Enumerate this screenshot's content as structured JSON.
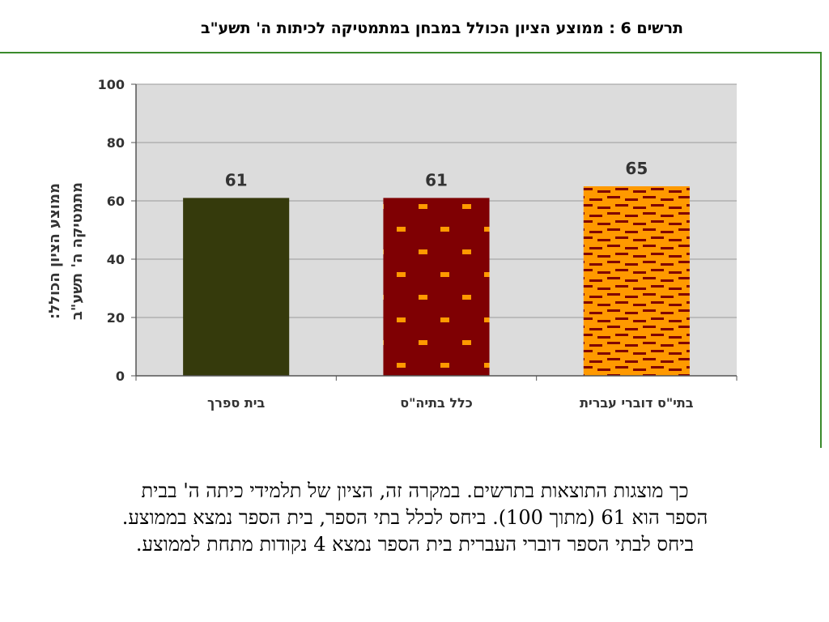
{
  "chart_data": {
    "type": "bar",
    "title": "תרשים 6 : ממוצע הציון הכולל במבחן במתמטיקה לכיתות ה' תשע\"ב",
    "ylabel_lines": [
      "ממוצע הציון הכולל:",
      "מתמטיקה ה' תשע\"ב"
    ],
    "xlabel": "",
    "categories": [
      "בית ספרך",
      "כלל בתיה\"ס",
      "בתי\"ס דוברי עברית"
    ],
    "values": [
      61,
      61,
      65
    ],
    "ylim": [
      0,
      100
    ],
    "yticks": [
      0,
      20,
      40,
      60,
      80,
      100
    ],
    "grid": true,
    "bar_colors": [
      "#353a0c",
      "#7f0003",
      "#ff9900"
    ],
    "bar_patterns": [
      "solid",
      "dots",
      "dashes"
    ],
    "pattern_colors": [
      "",
      "#ff9900",
      "#7f0003"
    ],
    "plot_background": "#dcdcdc"
  },
  "caption_lines": [
    "כך מוצגות התוצאות בתרשים. במקרה זה, הציון של תלמידי כיתה ה' בבית",
    "הספר הוא 61 (מתוך 100). ביחס לכלל בתי הספר, בית הספר נמצא בממוצע.",
    "ביחס לבתי הספר דוברי העברית בית הספר נמצא 4 נקודות מתחת לממוצע."
  ]
}
